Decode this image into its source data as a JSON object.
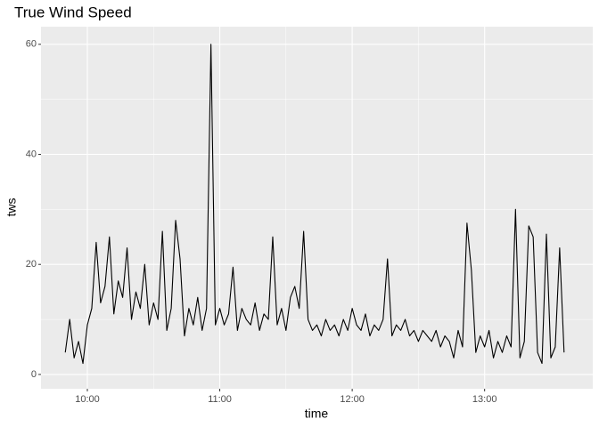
{
  "chart_data": {
    "type": "line",
    "title": "True Wind Speed",
    "x_label": "time",
    "y_label": "tws",
    "color": "#000000",
    "x": [
      "09:50",
      "09:52",
      "09:54",
      "09:56",
      "09:58",
      "10:00",
      "10:02",
      "10:04",
      "10:06",
      "10:08",
      "10:10",
      "10:12",
      "10:14",
      "10:16",
      "10:18",
      "10:20",
      "10:22",
      "10:24",
      "10:26",
      "10:28",
      "10:30",
      "10:32",
      "10:34",
      "10:36",
      "10:38",
      "10:40",
      "10:42",
      "10:44",
      "10:46",
      "10:48",
      "10:50",
      "10:52",
      "10:54",
      "10:56",
      "10:58",
      "11:00",
      "11:02",
      "11:04",
      "11:06",
      "11:08",
      "11:10",
      "11:12",
      "11:14",
      "11:16",
      "11:18",
      "11:20",
      "11:22",
      "11:24",
      "11:26",
      "11:28",
      "11:30",
      "11:32",
      "11:34",
      "11:36",
      "11:38",
      "11:40",
      "11:42",
      "11:44",
      "11:46",
      "11:48",
      "11:50",
      "11:52",
      "11:54",
      "11:56",
      "11:58",
      "12:00",
      "12:02",
      "12:04",
      "12:06",
      "12:08",
      "12:10",
      "12:12",
      "12:14",
      "12:16",
      "12:18",
      "12:20",
      "12:22",
      "12:24",
      "12:26",
      "12:28",
      "12:30",
      "12:32",
      "12:34",
      "12:36",
      "12:38",
      "12:40",
      "12:42",
      "12:44",
      "12:46",
      "12:48",
      "12:50",
      "12:52",
      "12:54",
      "12:56",
      "12:58",
      "13:00",
      "13:02",
      "13:04",
      "13:06",
      "13:08",
      "13:10",
      "13:12",
      "13:14",
      "13:16",
      "13:18",
      "13:20",
      "13:22",
      "13:24",
      "13:26",
      "13:28",
      "13:30",
      "13:32",
      "13:34",
      "13:36"
    ],
    "values": [
      4,
      10,
      3,
      6,
      2,
      9,
      12,
      24,
      13,
      16,
      25,
      11,
      17,
      14,
      23,
      10,
      15,
      12,
      20,
      9,
      13,
      10,
      26,
      8,
      12,
      28,
      21,
      7,
      12,
      9,
      14,
      8,
      12,
      60,
      9,
      12,
      9,
      11,
      19.5,
      8,
      12,
      10,
      9,
      13,
      8,
      11,
      10,
      25,
      9,
      12,
      8,
      14,
      16,
      12,
      26,
      10,
      8,
      9,
      7,
      10,
      8,
      9,
      7,
      10,
      8,
      12,
      9,
      8,
      11,
      7,
      9,
      8,
      10,
      21,
      7,
      9,
      8,
      10,
      7,
      8,
      6,
      8,
      7,
      6,
      8,
      5,
      7,
      6,
      3,
      8,
      5,
      27.5,
      19,
      4,
      7,
      5,
      8,
      3,
      6,
      4,
      7,
      5,
      30,
      3,
      6,
      27,
      25,
      4,
      2,
      25.5,
      3,
      5,
      23,
      4
    ],
    "xlim": [
      "09:39",
      "13:49"
    ],
    "xticks": [
      "10:00",
      "11:00",
      "12:00",
      "13:00"
    ],
    "ylim": [
      -2.6,
      63.2
    ],
    "yticks": [
      0,
      20,
      40,
      60
    ],
    "grid": true
  }
}
